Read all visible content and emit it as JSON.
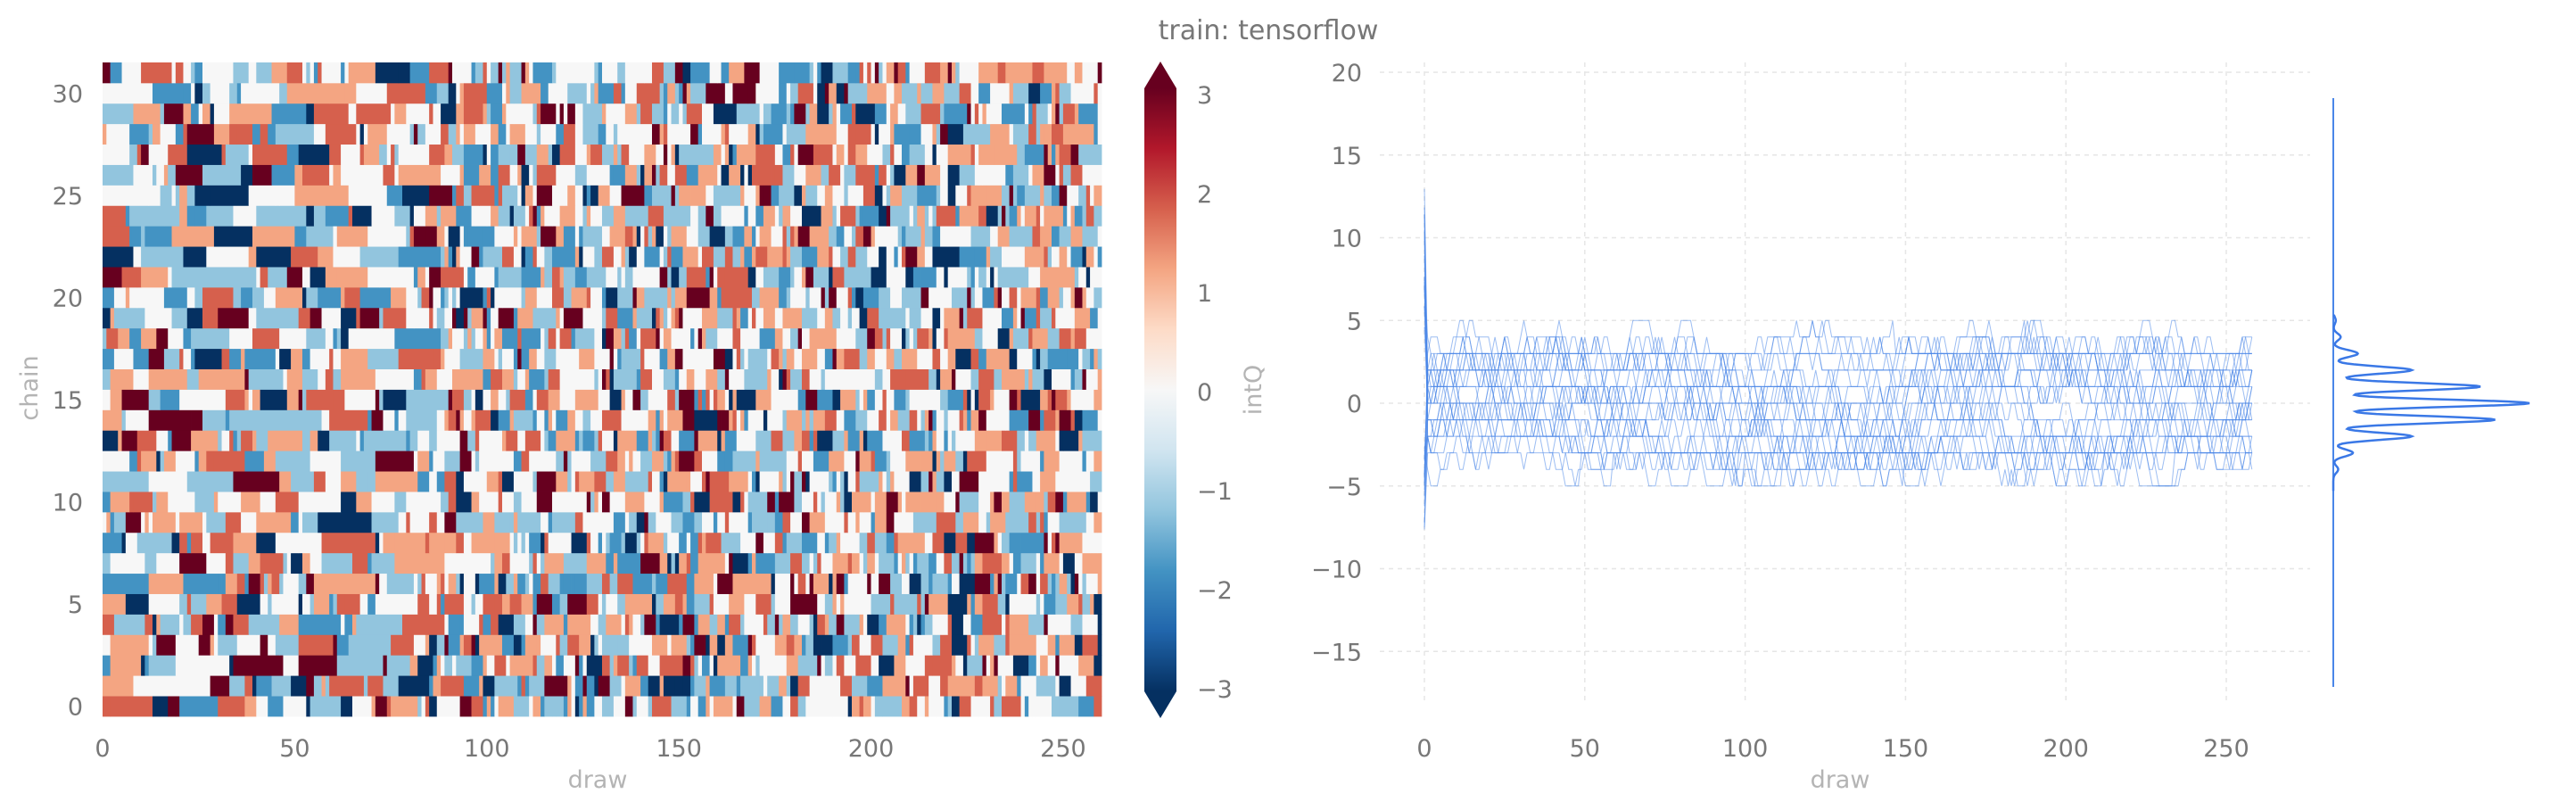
{
  "figure": {
    "title": "train: tensorflow"
  },
  "chart_data": [
    {
      "type": "heatmap",
      "xlabel": "draw",
      "ylabel": "chain",
      "xlim": [
        0,
        260
      ],
      "ylim": [
        0,
        31
      ],
      "xticks": [
        0,
        50,
        100,
        150,
        200,
        250
      ],
      "yticks": [
        0,
        5,
        10,
        15,
        20,
        25,
        30
      ],
      "n_chains": 32,
      "n_draws": 260,
      "value_range": [
        -3,
        3
      ],
      "cmap": "RdBu_r",
      "colorbar": {
        "label": "intQ",
        "ticks": [
          "3",
          "2",
          "1",
          "0",
          "−1",
          "−2",
          "−3"
        ],
        "extend": "both",
        "colors": [
          "#053061",
          "#2166ac",
          "#4393c3",
          "#92c5de",
          "#d1e5f0",
          "#f7f7f7",
          "#fddbc7",
          "#f4a582",
          "#d6604d",
          "#b2182b",
          "#67001f"
        ]
      }
    },
    {
      "type": "line",
      "xlabel": "draw",
      "ylabel": "",
      "xlim": [
        0,
        260
      ],
      "ylim": [
        -17,
        20
      ],
      "xticks": [
        0,
        50,
        100,
        150,
        200,
        250
      ],
      "yticks": [
        20,
        15,
        10,
        5,
        0,
        -5,
        -10,
        -15
      ],
      "grid": true,
      "series_count": 32,
      "series_color": "#4a86e8",
      "value_range": [
        -5,
        5
      ],
      "initial_spike": [
        -8,
        13
      ],
      "marginal": {
        "type": "histogram-kde",
        "orientation": "horizontal",
        "integer_bins": [
          {
            "value": -4,
            "density": 0.01
          },
          {
            "value": -3,
            "density": 0.04
          },
          {
            "value": -2,
            "density": 0.16
          },
          {
            "value": -1,
            "density": 0.33
          },
          {
            "value": 0,
            "density": 0.4
          },
          {
            "value": 1,
            "density": 0.3
          },
          {
            "value": 2,
            "density": 0.16
          },
          {
            "value": 3,
            "density": 0.05
          },
          {
            "value": 4,
            "density": 0.015
          },
          {
            "value": 5,
            "density": 0.005
          }
        ]
      }
    }
  ]
}
